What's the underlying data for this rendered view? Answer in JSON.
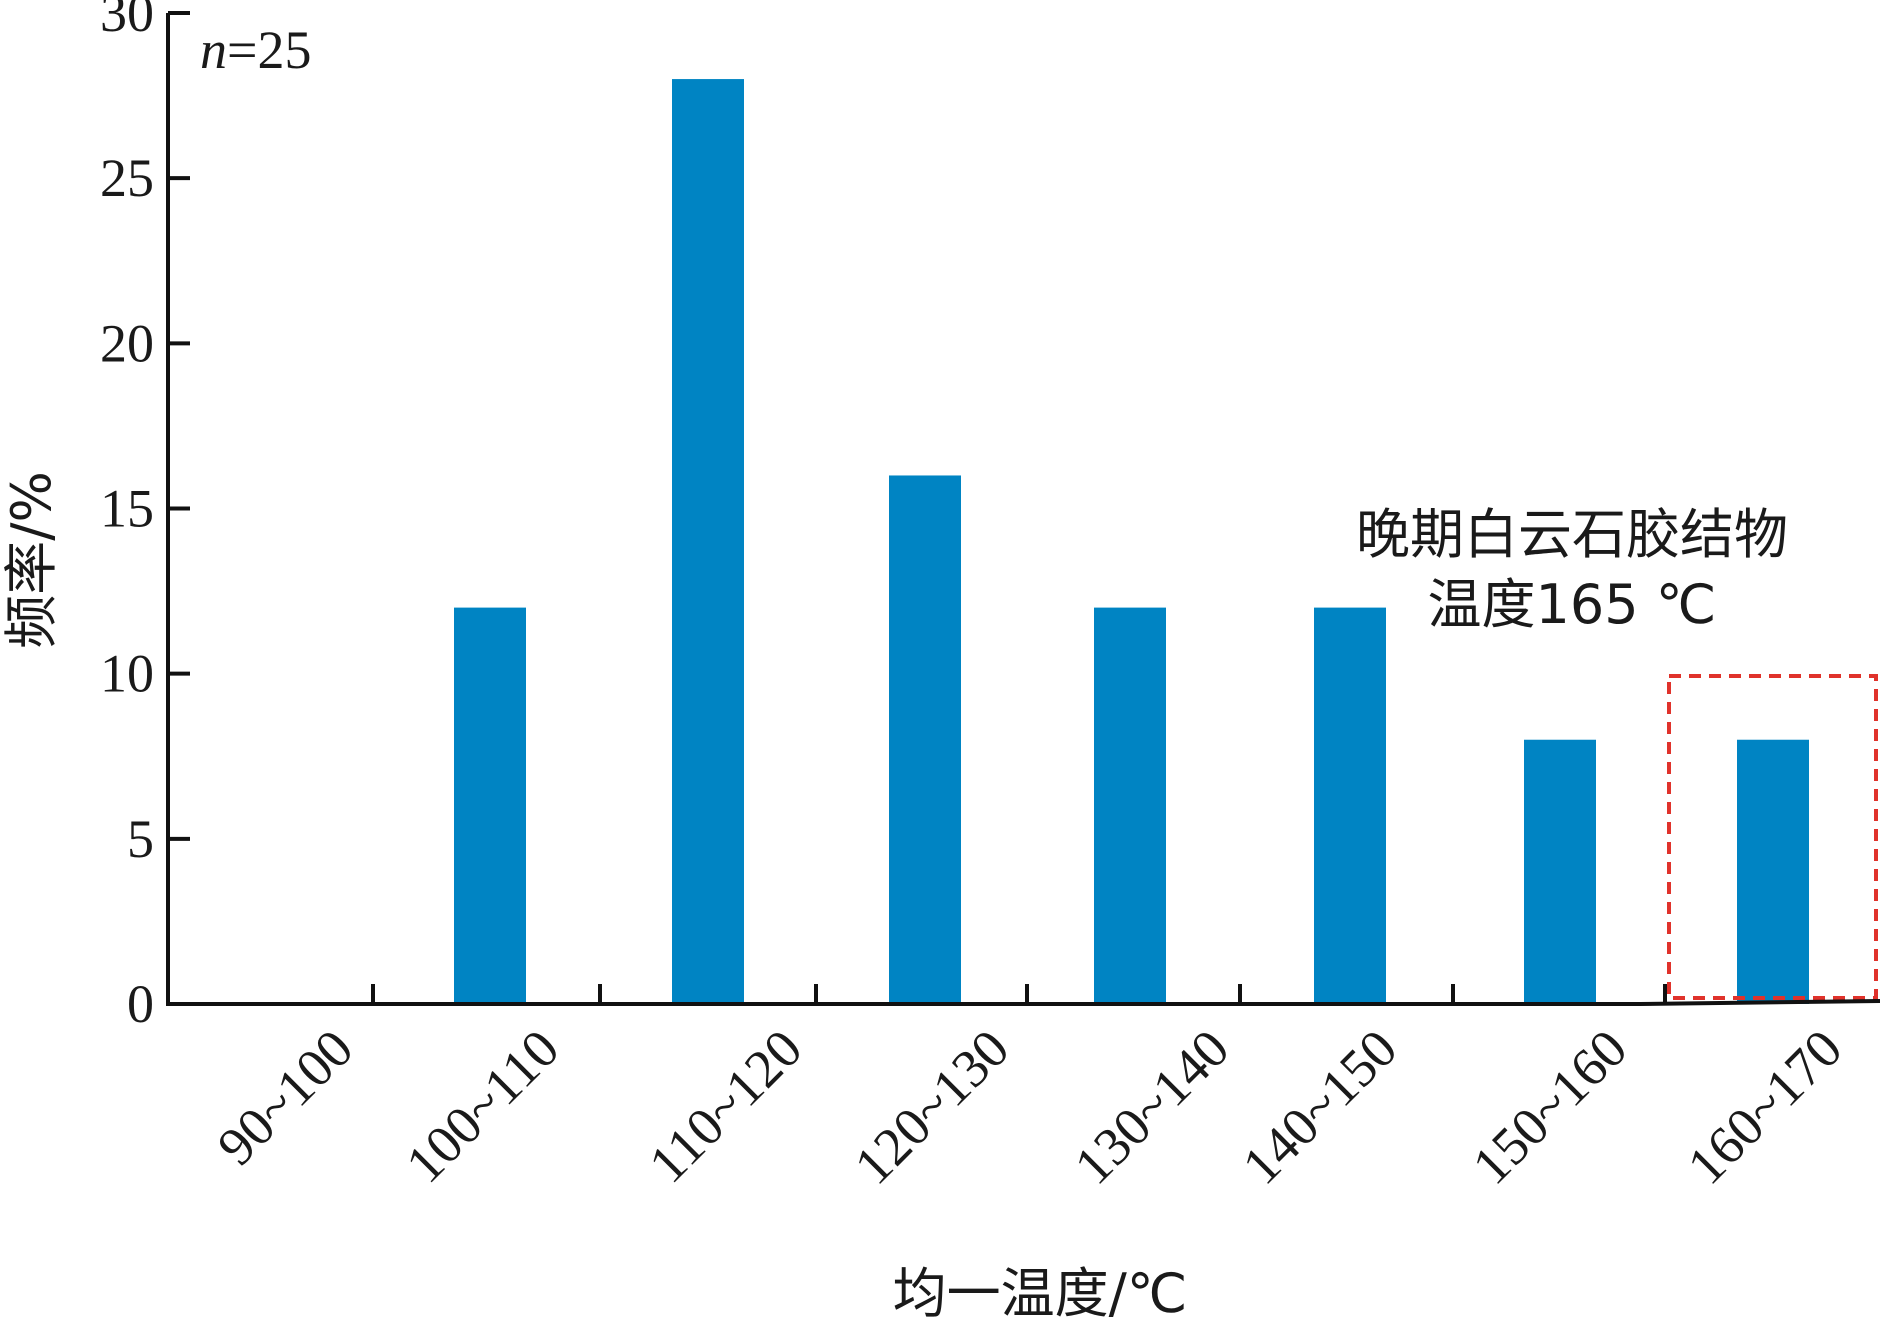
{
  "chart_data": {
    "type": "bar",
    "categories": [
      "90~100",
      "100~110",
      "110~120",
      "120~130",
      "130~140",
      "140~150",
      "150~160",
      "160~170"
    ],
    "values": [
      0,
      12,
      28,
      16,
      12,
      12,
      8,
      8
    ],
    "xlabel": "均一温度/℃",
    "ylabel": "频率/%",
    "ylim": [
      0,
      30
    ],
    "yticks": [
      0,
      5,
      10,
      15,
      20,
      25,
      30
    ],
    "bar_color": "#0084c3",
    "grid": false,
    "sample_note": {
      "italic": "n",
      "rest": "=25"
    },
    "annotation": {
      "line1": "晚期白云石胶结物",
      "line2": "温度165 ℃",
      "highlight_category": "160~170",
      "box_color": "#e0322b"
    }
  }
}
